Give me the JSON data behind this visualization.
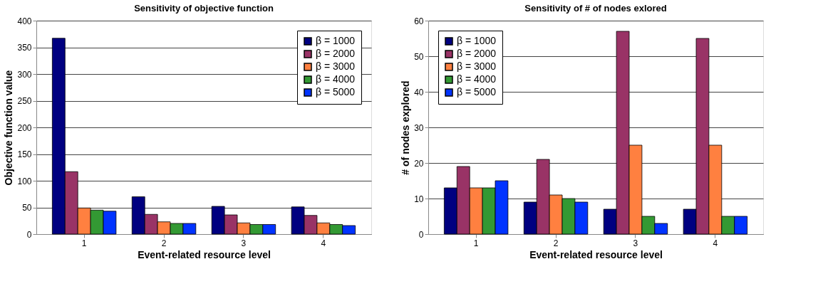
{
  "chart_data": [
    {
      "type": "bar",
      "title": "Sensitivity of objective function",
      "xlabel": "Event-related resource level",
      "ylabel": "Objective function value",
      "categories": [
        "1",
        "2",
        "3",
        "4"
      ],
      "series": [
        {
          "name": "β = 1000",
          "color": "#000080",
          "values": [
            367,
            70,
            52,
            51
          ]
        },
        {
          "name": "β = 2000",
          "color": "#993366",
          "values": [
            117,
            37,
            36,
            35
          ]
        },
        {
          "name": "β = 3000",
          "color": "#ff8040",
          "values": [
            49,
            23,
            21,
            21
          ]
        },
        {
          "name": "β = 4000",
          "color": "#339933",
          "values": [
            45,
            20,
            18,
            18
          ]
        },
        {
          "name": "β = 5000",
          "color": "#0033ff",
          "values": [
            43,
            20,
            18,
            16
          ]
        }
      ],
      "ylim": [
        0,
        400
      ],
      "yticks": [
        0,
        50,
        100,
        150,
        200,
        250,
        300,
        350,
        400
      ],
      "grid": "y",
      "legend": "top right"
    },
    {
      "type": "bar",
      "title": "Sensitivity of # of nodes exlored",
      "xlabel": "Event-related resource level",
      "ylabel": "# of nodes explored",
      "categories": [
        "1",
        "2",
        "3",
        "4"
      ],
      "series": [
        {
          "name": "β = 1000",
          "color": "#000080",
          "values": [
            13,
            9,
            7,
            7
          ]
        },
        {
          "name": "β = 2000",
          "color": "#993366",
          "values": [
            19,
            21,
            57,
            55
          ]
        },
        {
          "name": "β = 3000",
          "color": "#ff8040",
          "values": [
            13,
            11,
            25,
            25
          ]
        },
        {
          "name": "β = 4000",
          "color": "#339933",
          "values": [
            13,
            10,
            5,
            5
          ]
        },
        {
          "name": "β = 5000",
          "color": "#0033ff",
          "values": [
            15,
            9,
            3,
            5
          ]
        }
      ],
      "ylim": [
        0,
        60
      ],
      "yticks": [
        0,
        10,
        20,
        30,
        40,
        50,
        60
      ],
      "grid": "y",
      "legend": "top left"
    }
  ]
}
